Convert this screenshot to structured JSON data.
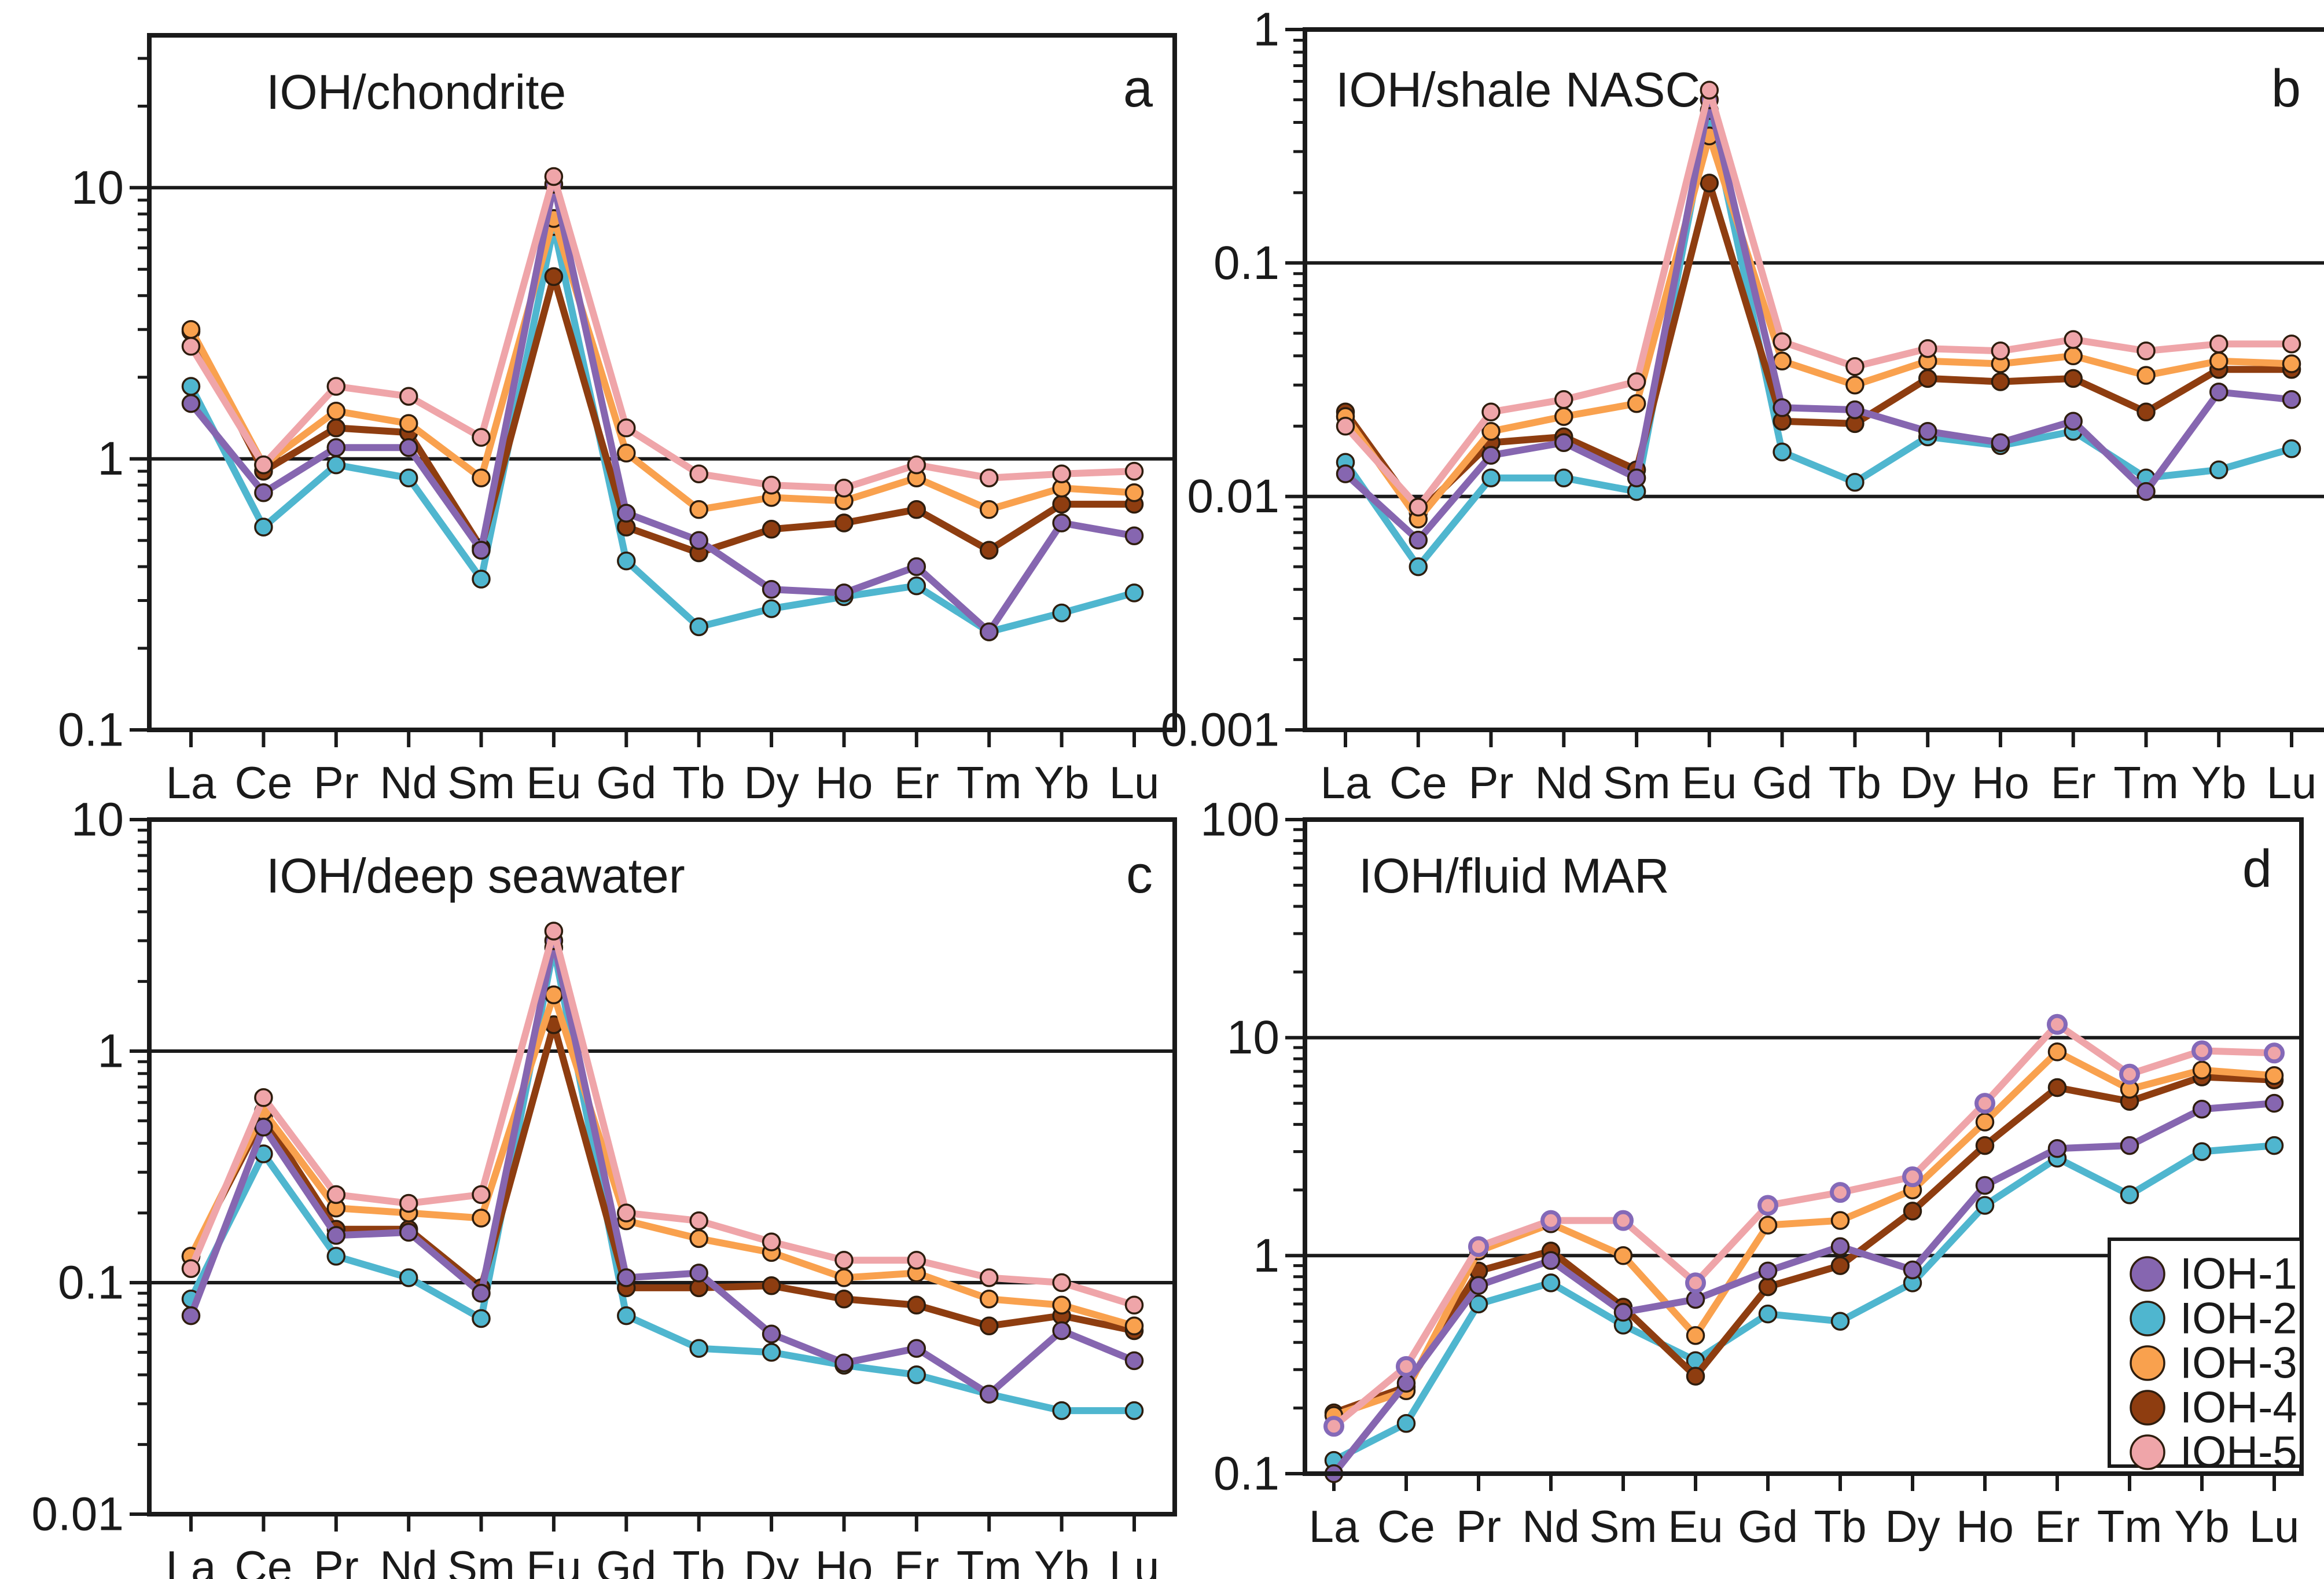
{
  "figure": {
    "background": "#ffffff",
    "description": "Four-panel REE spider diagram of iron-oxyhydroxide (IOH) samples normalized to four references"
  },
  "palette": {
    "IOH-1": "#8666b0",
    "IOH-2": "#4fb6cf",
    "IOH-3": "#f9a14e",
    "IOH-4": "#8e3d10",
    "IOH-5": "#efa5a9",
    "marker_edge": "#2e1d0e",
    "panel_d_ioh5_edge": "#8469b8",
    "axis": "#1a1a1a"
  },
  "legend": {
    "location": "bottom-right of panel d",
    "entries": [
      {
        "label": "IOH-1",
        "color_key": "IOH-1"
      },
      {
        "label": "IOH-2",
        "color_key": "IOH-2"
      },
      {
        "label": "IOH-3",
        "color_key": "IOH-3"
      },
      {
        "label": "IOH-4",
        "color_key": "IOH-4"
      },
      {
        "label": "IOH-5",
        "color_key": "IOH-5"
      }
    ]
  },
  "chart_data": [
    {
      "id": "a",
      "type": "line",
      "title": "IOH/chondrite",
      "corner_label": "a",
      "y_scale": "log",
      "ylim": [
        0.1,
        36.5
      ],
      "grid": "horizontal log-decade lines",
      "gridlines": [
        1,
        10
      ],
      "y_tick_labels": [
        {
          "value": 10,
          "label": "10"
        },
        {
          "value": 1,
          "label": "1"
        },
        {
          "value": 0.1,
          "label": "0.1"
        }
      ],
      "x_categories": [
        "La",
        "Ce",
        "Pr",
        "Nd",
        "Sm",
        "Eu",
        "Gd",
        "Tb",
        "Dy",
        "Ho",
        "Er",
        "Tm",
        "Yb",
        "Lu"
      ],
      "series": [
        {
          "name": "IOH-1",
          "values": [
            1.6,
            0.75,
            1.1,
            1.1,
            0.46,
            10.3,
            0.63,
            0.5,
            0.33,
            0.32,
            0.4,
            0.23,
            0.58,
            0.52
          ]
        },
        {
          "name": "IOH-2",
          "values": [
            1.85,
            0.56,
            0.95,
            0.85,
            0.36,
            7.2,
            0.42,
            0.24,
            0.28,
            0.31,
            0.34,
            0.23,
            0.27,
            0.32
          ]
        },
        {
          "name": "IOH-3",
          "values": [
            3.0,
            0.95,
            1.5,
            1.35,
            0.85,
            7.7,
            1.05,
            0.65,
            0.72,
            0.7,
            0.85,
            0.65,
            0.78,
            0.75
          ]
        },
        {
          "name": "IOH-4",
          "values": [
            2.95,
            0.9,
            1.3,
            1.25,
            0.47,
            4.7,
            0.56,
            0.45,
            0.55,
            0.58,
            0.65,
            0.46,
            0.68,
            0.68
          ]
        },
        {
          "name": "IOH-5",
          "values": [
            2.6,
            0.95,
            1.85,
            1.7,
            1.2,
            11.0,
            1.3,
            0.88,
            0.8,
            0.78,
            0.95,
            0.85,
            0.88,
            0.9
          ]
        }
      ]
    },
    {
      "id": "b",
      "type": "line",
      "title": "IOH/shale NASC",
      "corner_label": "b",
      "y_scale": "log",
      "ylim": [
        0.001,
        1
      ],
      "grid": "horizontal log-decade lines",
      "gridlines": [
        0.01,
        0.1
      ],
      "y_tick_labels": [
        {
          "value": 1,
          "label": "1"
        },
        {
          "value": 0.1,
          "label": "0.1"
        },
        {
          "value": 0.01,
          "label": "0.01"
        },
        {
          "value": 0.001,
          "label": "0.001"
        }
      ],
      "x_categories": [
        "La",
        "Ce",
        "Pr",
        "Nd",
        "Sm",
        "Eu",
        "Gd",
        "Tb",
        "Dy",
        "Ho",
        "Er",
        "Tm",
        "Yb",
        "Lu"
      ],
      "series": [
        {
          "name": "IOH-1",
          "values": [
            0.0125,
            0.0065,
            0.015,
            0.017,
            0.012,
            0.5,
            0.024,
            0.0235,
            0.019,
            0.017,
            0.021,
            0.0105,
            0.028,
            0.026
          ]
        },
        {
          "name": "IOH-2",
          "values": [
            0.014,
            0.005,
            0.012,
            0.012,
            0.0105,
            0.45,
            0.0155,
            0.0115,
            0.018,
            0.0165,
            0.019,
            0.012,
            0.013,
            0.016
          ]
        },
        {
          "name": "IOH-3",
          "values": [
            0.022,
            0.008,
            0.019,
            0.022,
            0.025,
            0.35,
            0.038,
            0.03,
            0.038,
            0.037,
            0.04,
            0.033,
            0.038,
            0.037
          ]
        },
        {
          "name": "IOH-4",
          "values": [
            0.023,
            0.0085,
            0.017,
            0.018,
            0.013,
            0.22,
            0.021,
            0.0205,
            0.032,
            0.031,
            0.032,
            0.023,
            0.035,
            0.035
          ]
        },
        {
          "name": "IOH-5",
          "values": [
            0.02,
            0.009,
            0.023,
            0.026,
            0.031,
            0.55,
            0.046,
            0.036,
            0.043,
            0.042,
            0.047,
            0.042,
            0.045,
            0.045
          ]
        }
      ]
    },
    {
      "id": "c",
      "type": "line",
      "title": "IOH/deep seawater",
      "corner_label": "c",
      "y_scale": "log",
      "ylim": [
        0.01,
        10
      ],
      "grid": "horizontal log-decade lines",
      "gridlines": [
        0.1,
        1
      ],
      "y_tick_labels": [
        {
          "value": 10,
          "label": "10"
        },
        {
          "value": 1,
          "label": "1"
        },
        {
          "value": 0.1,
          "label": "0.1"
        },
        {
          "value": 0.01,
          "label": "0.01"
        }
      ],
      "x_categories": [
        "La",
        "Ce",
        "Pr",
        "Nd",
        "Sm",
        "Eu",
        "Gd",
        "Tb",
        "Dy",
        "Ho",
        "Er",
        "Tm",
        "Yb",
        "Lu"
      ],
      "series": [
        {
          "name": "IOH-1",
          "values": [
            0.072,
            0.47,
            0.16,
            0.165,
            0.09,
            3.0,
            0.105,
            0.11,
            0.06,
            0.045,
            0.052,
            0.033,
            0.062,
            0.046
          ]
        },
        {
          "name": "IOH-2",
          "values": [
            0.085,
            0.36,
            0.13,
            0.105,
            0.07,
            2.8,
            0.072,
            0.052,
            0.05,
            0.044,
            0.04,
            0.033,
            0.028,
            0.028
          ]
        },
        {
          "name": "IOH-3",
          "values": [
            0.13,
            0.55,
            0.21,
            0.2,
            0.19,
            1.75,
            0.185,
            0.155,
            0.135,
            0.105,
            0.11,
            0.085,
            0.08,
            0.065
          ]
        },
        {
          "name": "IOH-4",
          "values": [
            0.13,
            0.52,
            0.17,
            0.17,
            0.095,
            1.3,
            0.095,
            0.095,
            0.097,
            0.085,
            0.08,
            0.065,
            0.072,
            0.062
          ]
        },
        {
          "name": "IOH-5",
          "values": [
            0.115,
            0.63,
            0.24,
            0.22,
            0.24,
            3.3,
            0.2,
            0.185,
            0.15,
            0.125,
            0.125,
            0.105,
            0.1,
            0.08
          ]
        }
      ]
    },
    {
      "id": "d",
      "type": "line",
      "title": "IOH/fluid MAR",
      "corner_label": "d",
      "y_scale": "log",
      "ylim": [
        0.1,
        100
      ],
      "grid": "horizontal log-decade lines",
      "gridlines": [
        1,
        10
      ],
      "y_tick_labels": [
        {
          "value": 100,
          "label": "100"
        },
        {
          "value": 10,
          "label": "10"
        },
        {
          "value": 1,
          "label": "1"
        },
        {
          "value": 0.1,
          "label": "0.1"
        }
      ],
      "x_categories": [
        "La",
        "Ce",
        "Pr",
        "Nd",
        "Sm",
        "Eu",
        "Gd",
        "Tb",
        "Dy",
        "Ho",
        "Er",
        "Tm",
        "Yb",
        "Lu"
      ],
      "series": [
        {
          "name": "IOH-1",
          "values": [
            0.1,
            0.26,
            0.73,
            0.95,
            0.55,
            0.63,
            0.85,
            1.1,
            0.86,
            2.1,
            3.1,
            3.2,
            4.7,
            5.0
          ]
        },
        {
          "name": "IOH-2",
          "values": [
            0.115,
            0.17,
            0.6,
            0.75,
            0.48,
            0.33,
            0.54,
            0.5,
            0.75,
            1.7,
            2.8,
            1.9,
            3.0,
            3.2
          ]
        },
        {
          "name": "IOH-3",
          "values": [
            0.185,
            0.24,
            1.05,
            1.4,
            1.0,
            0.43,
            1.38,
            1.45,
            2.0,
            4.1,
            8.6,
            5.8,
            7.1,
            6.7
          ]
        },
        {
          "name": "IOH-4",
          "values": [
            0.19,
            0.25,
            0.85,
            1.05,
            0.58,
            0.28,
            0.72,
            0.9,
            1.6,
            3.2,
            5.9,
            5.1,
            6.6,
            6.4
          ]
        },
        {
          "name": "IOH-5",
          "values": [
            0.165,
            0.31,
            1.1,
            1.45,
            1.45,
            0.75,
            1.7,
            1.95,
            2.3,
            5.0,
            11.5,
            6.8,
            8.7,
            8.5
          ]
        }
      ]
    }
  ]
}
